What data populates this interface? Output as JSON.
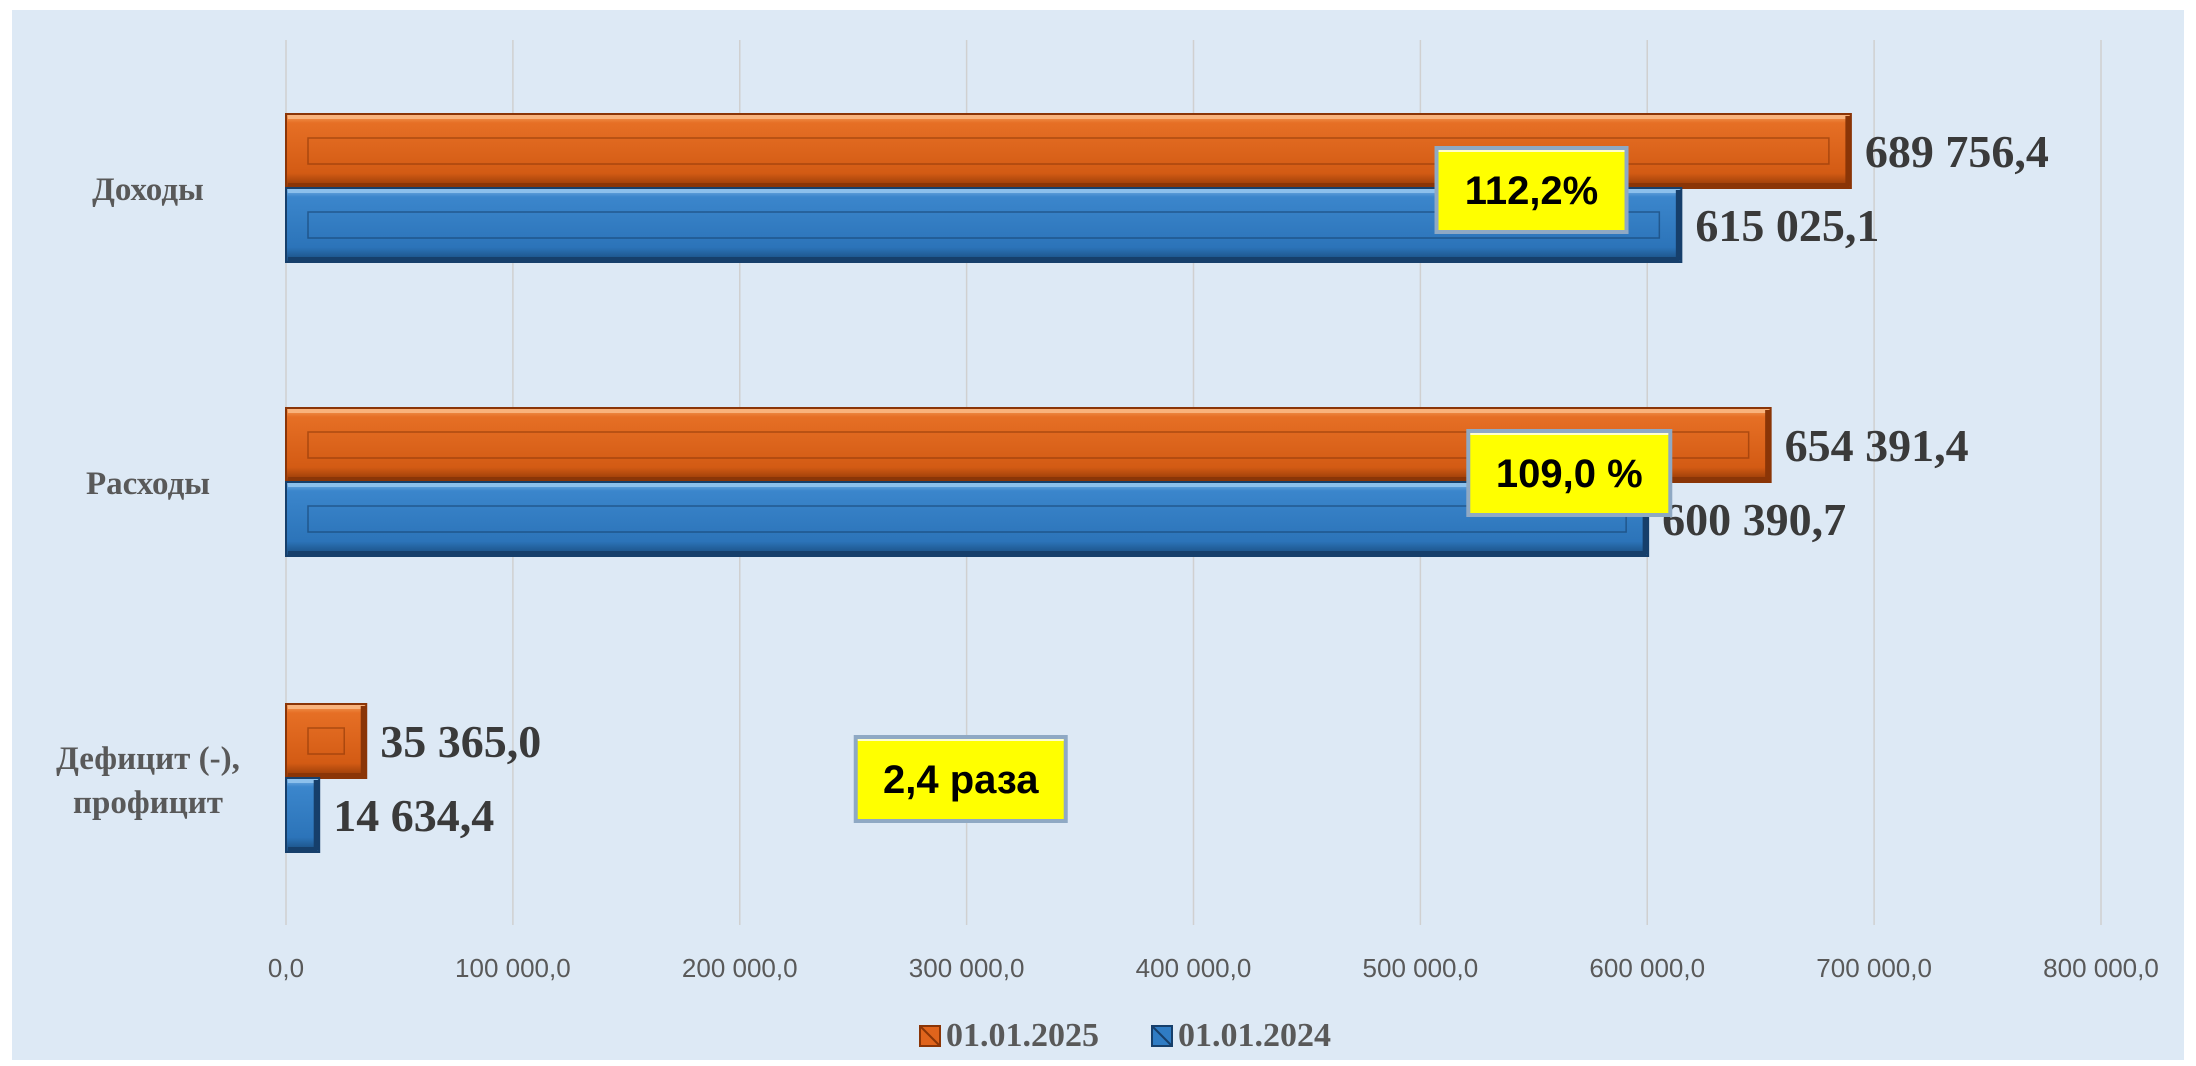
{
  "chart_data": {
    "type": "bar",
    "orientation": "horizontal",
    "categories": [
      "Доходы",
      "Расходы",
      "Дефицит (-), профицит"
    ],
    "series": [
      {
        "name": "01.01.2025",
        "values": [
          689756.4,
          654391.4,
          35365.0
        ],
        "labels": [
          "689 756,4",
          "654 391,4",
          "35 365,0"
        ],
        "color": "#e0641c"
      },
      {
        "name": "01.01.2024",
        "values": [
          615025.1,
          600390.7,
          14634.4
        ],
        "labels": [
          "615 025,1",
          "600 390,7",
          "14 634,4"
        ],
        "color": "#2f7cc4"
      }
    ],
    "xlim": [
      0,
      800000
    ],
    "x_ticks": [
      0,
      100000,
      200000,
      300000,
      400000,
      500000,
      600000,
      700000,
      800000
    ],
    "x_tick_labels": [
      "0,0",
      "100 000,0",
      "200 000,0",
      "300 000,0",
      "400 000,0",
      "500 000,0",
      "600 000,0",
      "700 000,0",
      "800 000,0"
    ],
    "grid": true,
    "legend_position": "bottom",
    "annotations": [
      {
        "text": "112,2%",
        "category": "Доходы",
        "x_value": 508000
      },
      {
        "text": "109,0 %",
        "category": "Расходы",
        "x_value": 522000
      },
      {
        "text": "2,4 раза",
        "category": "Дефицит (-), профицит",
        "x_value": 252000
      }
    ],
    "colors": {
      "background": "#dde9f5",
      "gridline": "#d0d0d0",
      "callout_fill": "#ffff00"
    }
  }
}
